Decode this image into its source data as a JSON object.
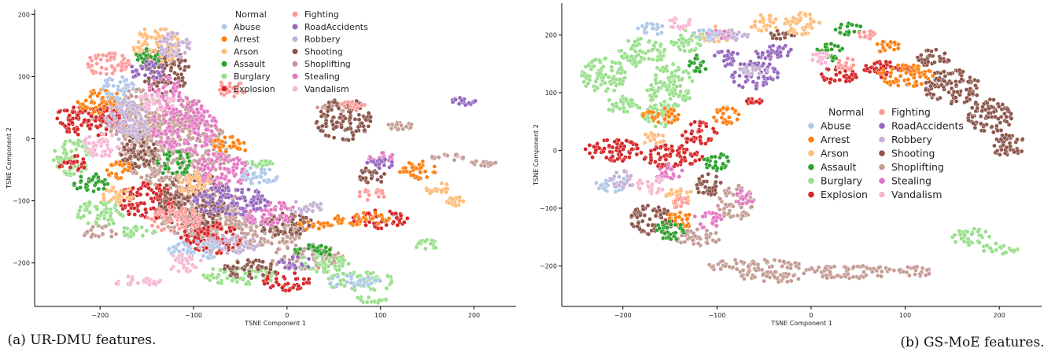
{
  "palette": {
    "Abuse": "#aec7e8",
    "Arrest": "#ff7f0e",
    "Arson": "#ffbb78",
    "Assault": "#2ca02c",
    "Burglary": "#98df8a",
    "Explosion": "#d62728",
    "Fighting": "#ff9896",
    "RoadAccidents": "#9467bd",
    "Robbery": "#c5b0d5",
    "Shooting": "#8c564b",
    "Shoplifting": "#c49c94",
    "Stealing": "#e377c2",
    "Vandalism": "#f7b6d2"
  },
  "chart_data": [
    {
      "type": "scatter",
      "caption": "(a) UR-DMU features.",
      "xlabel": "TSNE Component 1",
      "ylabel": "TSNE Component 2",
      "xlim": [
        -270,
        245
      ],
      "ylim": [
        -270,
        208
      ],
      "xticks": [
        -200,
        -100,
        0,
        100,
        200
      ],
      "yticks": [
        -200,
        -100,
        0,
        100,
        200
      ],
      "legend_title": "Normal",
      "legend": [
        "Abuse",
        "Arrest",
        "Arson",
        "Assault",
        "Burglary",
        "Explosion",
        "Fighting",
        "RoadAccidents",
        "Robbery",
        "Shooting",
        "Shoplifting",
        "Stealing",
        "Vandalism"
      ],
      "legend_placement": "top-center",
      "series": [
        {
          "name": "Shoplifting",
          "points": [
            [
              -150,
              40,
              60,
              40
            ],
            [
              -120,
              -20,
              60,
              60
            ],
            [
              -90,
              -120,
              50,
              40
            ],
            [
              -40,
              -150,
              60,
              25
            ],
            [
              20,
              -190,
              40,
              20
            ],
            [
              50,
              50,
              20,
              8
            ],
            [
              120,
              20,
              15,
              6
            ],
            [
              170,
              -30,
              20,
              6
            ],
            [
              210,
              -40,
              15,
              5
            ],
            [
              -200,
              -150,
              20,
              10
            ]
          ]
        },
        {
          "name": "Burglary",
          "points": [
            [
              -230,
              -30,
              20,
              30
            ],
            [
              -200,
              -120,
              25,
              20
            ],
            [
              -160,
              -150,
              20,
              10
            ],
            [
              -50,
              -220,
              40,
              15
            ],
            [
              40,
              -200,
              30,
              15
            ],
            [
              80,
              -230,
              40,
              15
            ],
            [
              150,
              -170,
              15,
              8
            ],
            [
              -30,
              -40,
              15,
              6
            ],
            [
              90,
              -260,
              20,
              6
            ]
          ]
        },
        {
          "name": "Explosion",
          "points": [
            [
              -210,
              30,
              40,
              25
            ],
            [
              -150,
              -100,
              30,
              30
            ],
            [
              -80,
              -160,
              35,
              25
            ],
            [
              0,
              -230,
              25,
              15
            ],
            [
              100,
              -130,
              30,
              15
            ],
            [
              -230,
              -40,
              15,
              15
            ]
          ]
        },
        {
          "name": "Shooting",
          "points": [
            [
              -130,
              110,
              25,
              40
            ],
            [
              -100,
              -100,
              40,
              45
            ],
            [
              60,
              30,
              30,
              35
            ],
            [
              0,
              -140,
              30,
              20
            ],
            [
              -40,
              -210,
              30,
              15
            ],
            [
              90,
              -60,
              15,
              15
            ],
            [
              -160,
              -20,
              20,
              30
            ]
          ]
        },
        {
          "name": "Stealing",
          "points": [
            [
              -110,
              20,
              35,
              45
            ],
            [
              -70,
              -50,
              30,
              30
            ],
            [
              -130,
              80,
              20,
              20
            ],
            [
              -20,
              -120,
              30,
              20
            ],
            [
              100,
              -30,
              15,
              8
            ]
          ]
        },
        {
          "name": "Arrest",
          "points": [
            [
              -200,
              60,
              25,
              20
            ],
            [
              80,
              -130,
              30,
              12
            ],
            [
              -60,
              -10,
              20,
              15
            ],
            [
              140,
              -50,
              20,
              15
            ],
            [
              -180,
              -50,
              15,
              15
            ],
            [
              30,
              -140,
              20,
              8
            ]
          ]
        },
        {
          "name": "Arson",
          "points": [
            [
              -140,
              150,
              25,
              30
            ],
            [
              -180,
              -90,
              20,
              15
            ],
            [
              160,
              -80,
              15,
              10
            ],
            [
              -100,
              -70,
              20,
              20
            ],
            [
              180,
              -100,
              10,
              8
            ]
          ]
        },
        {
          "name": "Assault",
          "points": [
            [
              -210,
              -70,
              20,
              15
            ],
            [
              -150,
              130,
              15,
              15
            ],
            [
              30,
              -180,
              25,
              10
            ],
            [
              -120,
              -40,
              20,
              20
            ]
          ]
        },
        {
          "name": "RoadAccidents",
          "points": [
            [
              -60,
              -100,
              40,
              25
            ],
            [
              190,
              60,
              15,
              6
            ],
            [
              100,
              -40,
              15,
              8
            ],
            [
              -150,
              110,
              20,
              15
            ],
            [
              10,
              -200,
              20,
              10
            ]
          ]
        },
        {
          "name": "Robbery",
          "points": [
            [
              -170,
              30,
              25,
              35
            ],
            [
              -60,
              -170,
              30,
              15
            ],
            [
              -120,
              150,
              20,
              20
            ],
            [
              20,
              -110,
              20,
              10
            ]
          ]
        },
        {
          "name": "Fighting",
          "points": [
            [
              -190,
              120,
              25,
              20
            ],
            [
              -120,
              -130,
              30,
              20
            ],
            [
              90,
              -90,
              15,
              10
            ],
            [
              -60,
              80,
              15,
              15
            ],
            [
              70,
              50,
              15,
              10
            ]
          ]
        },
        {
          "name": "Abuse",
          "points": [
            [
              -180,
              80,
              20,
              20
            ],
            [
              -100,
              -180,
              30,
              15
            ],
            [
              70,
              -230,
              30,
              10
            ],
            [
              -30,
              -60,
              20,
              15
            ]
          ]
        },
        {
          "name": "Vandalism",
          "points": [
            [
              -160,
              -230,
              25,
              10
            ],
            [
              -200,
              -10,
              20,
              20
            ],
            [
              -110,
              -200,
              20,
              15
            ],
            [
              -140,
              60,
              20,
              15
            ]
          ]
        }
      ]
    },
    {
      "type": "scatter",
      "caption": "(b) GS-MoE features.",
      "xlabel": "TSNE Component 1",
      "ylabel": "TSNE Component 2",
      "xlim": [
        -265,
        245
      ],
      "ylim": [
        -270,
        255
      ],
      "xticks": [
        -200,
        -100,
        0,
        100,
        200
      ],
      "yticks": [
        -200,
        -100,
        0,
        100,
        200
      ],
      "legend_title": "Normal",
      "legend": [
        "Abuse",
        "Arrest",
        "Arson",
        "Assault",
        "Burglary",
        "Explosion",
        "Fighting",
        "RoadAccidents",
        "Robbery",
        "Shooting",
        "Shoplifting",
        "Stealing",
        "Vandalism"
      ],
      "legend_placement": "center",
      "series": [
        {
          "name": "Burglary",
          "points": [
            [
              -220,
              130,
              25,
              30
            ],
            [
              -180,
              170,
              25,
              25
            ],
            [
              -150,
              110,
              25,
              40
            ],
            [
              -130,
              190,
              20,
              20
            ],
            [
              -200,
              80,
              20,
              15
            ],
            [
              -160,
              60,
              20,
              20
            ],
            [
              200,
              -170,
              20,
              10
            ],
            [
              170,
              -150,
              20,
              15
            ]
          ]
        },
        {
          "name": "Explosion",
          "points": [
            [
              -210,
              0,
              30,
              20
            ],
            [
              -150,
              -10,
              35,
              20
            ],
            [
              -120,
              30,
              20,
              20
            ],
            [
              30,
              130,
              20,
              15
            ],
            [
              80,
              140,
              25,
              15
            ],
            [
              -60,
              85,
              10,
              5
            ]
          ]
        },
        {
          "name": "Shooting",
          "points": [
            [
              150,
              110,
              30,
              30
            ],
            [
              190,
              60,
              25,
              30
            ],
            [
              210,
              10,
              20,
              20
            ],
            [
              -170,
              -120,
              25,
              25
            ],
            [
              -110,
              -60,
              15,
              20
            ],
            [
              -30,
              200,
              15,
              10
            ],
            [
              130,
              160,
              20,
              15
            ]
          ]
        },
        {
          "name": "Shoplifting",
          "points": [
            [
              -60,
              -200,
              50,
              12
            ],
            [
              40,
              -210,
              50,
              12
            ],
            [
              -120,
              -150,
              25,
              15
            ],
            [
              -80,
              -90,
              20,
              30
            ],
            [
              110,
              -210,
              20,
              10
            ],
            [
              -40,
              -220,
              40,
              8
            ]
          ]
        },
        {
          "name": "RoadAccidents",
          "points": [
            [
              -60,
              130,
              25,
              25
            ],
            [
              -40,
              170,
              20,
              15
            ],
            [
              -90,
              160,
              15,
              15
            ]
          ]
        },
        {
          "name": "Arrest",
          "points": [
            [
              100,
              130,
              30,
              20
            ],
            [
              80,
              180,
              15,
              10
            ],
            [
              -160,
              60,
              20,
              15
            ],
            [
              -90,
              60,
              15,
              15
            ],
            [
              -140,
              -120,
              15,
              15
            ]
          ]
        },
        {
          "name": "Arson",
          "points": [
            [
              -10,
              220,
              20,
              20
            ],
            [
              -100,
              200,
              20,
              15
            ],
            [
              -170,
              20,
              15,
              10
            ],
            [
              -50,
              220,
              15,
              15
            ],
            [
              -140,
              -80,
              15,
              15
            ]
          ]
        },
        {
          "name": "Assault",
          "points": [
            [
              20,
              170,
              15,
              15
            ],
            [
              -120,
              150,
              10,
              15
            ],
            [
              -150,
              -140,
              15,
              20
            ],
            [
              -100,
              -20,
              15,
              15
            ],
            [
              40,
              210,
              15,
              10
            ]
          ]
        },
        {
          "name": "Stealing",
          "points": [
            [
              -110,
              -120,
              15,
              15
            ],
            [
              -150,
              -40,
              15,
              15
            ],
            [
              -100,
              200,
              15,
              10
            ],
            [
              -70,
              -80,
              10,
              15
            ]
          ]
        },
        {
          "name": "Abuse",
          "points": [
            [
              -210,
              -60,
              20,
              15
            ],
            [
              -170,
              210,
              15,
              10
            ],
            [
              -110,
              200,
              15,
              10
            ]
          ]
        },
        {
          "name": "Robbery",
          "points": [
            [
              -200,
              -50,
              15,
              15
            ],
            [
              -80,
              200,
              15,
              10
            ],
            [
              -60,
              140,
              15,
              10
            ]
          ]
        },
        {
          "name": "Vandalism",
          "points": [
            [
              -170,
              -60,
              15,
              15
            ],
            [
              -140,
              220,
              15,
              10
            ],
            [
              10,
              160,
              10,
              10
            ]
          ]
        },
        {
          "name": "Fighting",
          "points": [
            [
              40,
              150,
              15,
              10
            ],
            [
              -140,
              -90,
              10,
              10
            ],
            [
              60,
              200,
              10,
              8
            ]
          ]
        }
      ]
    }
  ]
}
